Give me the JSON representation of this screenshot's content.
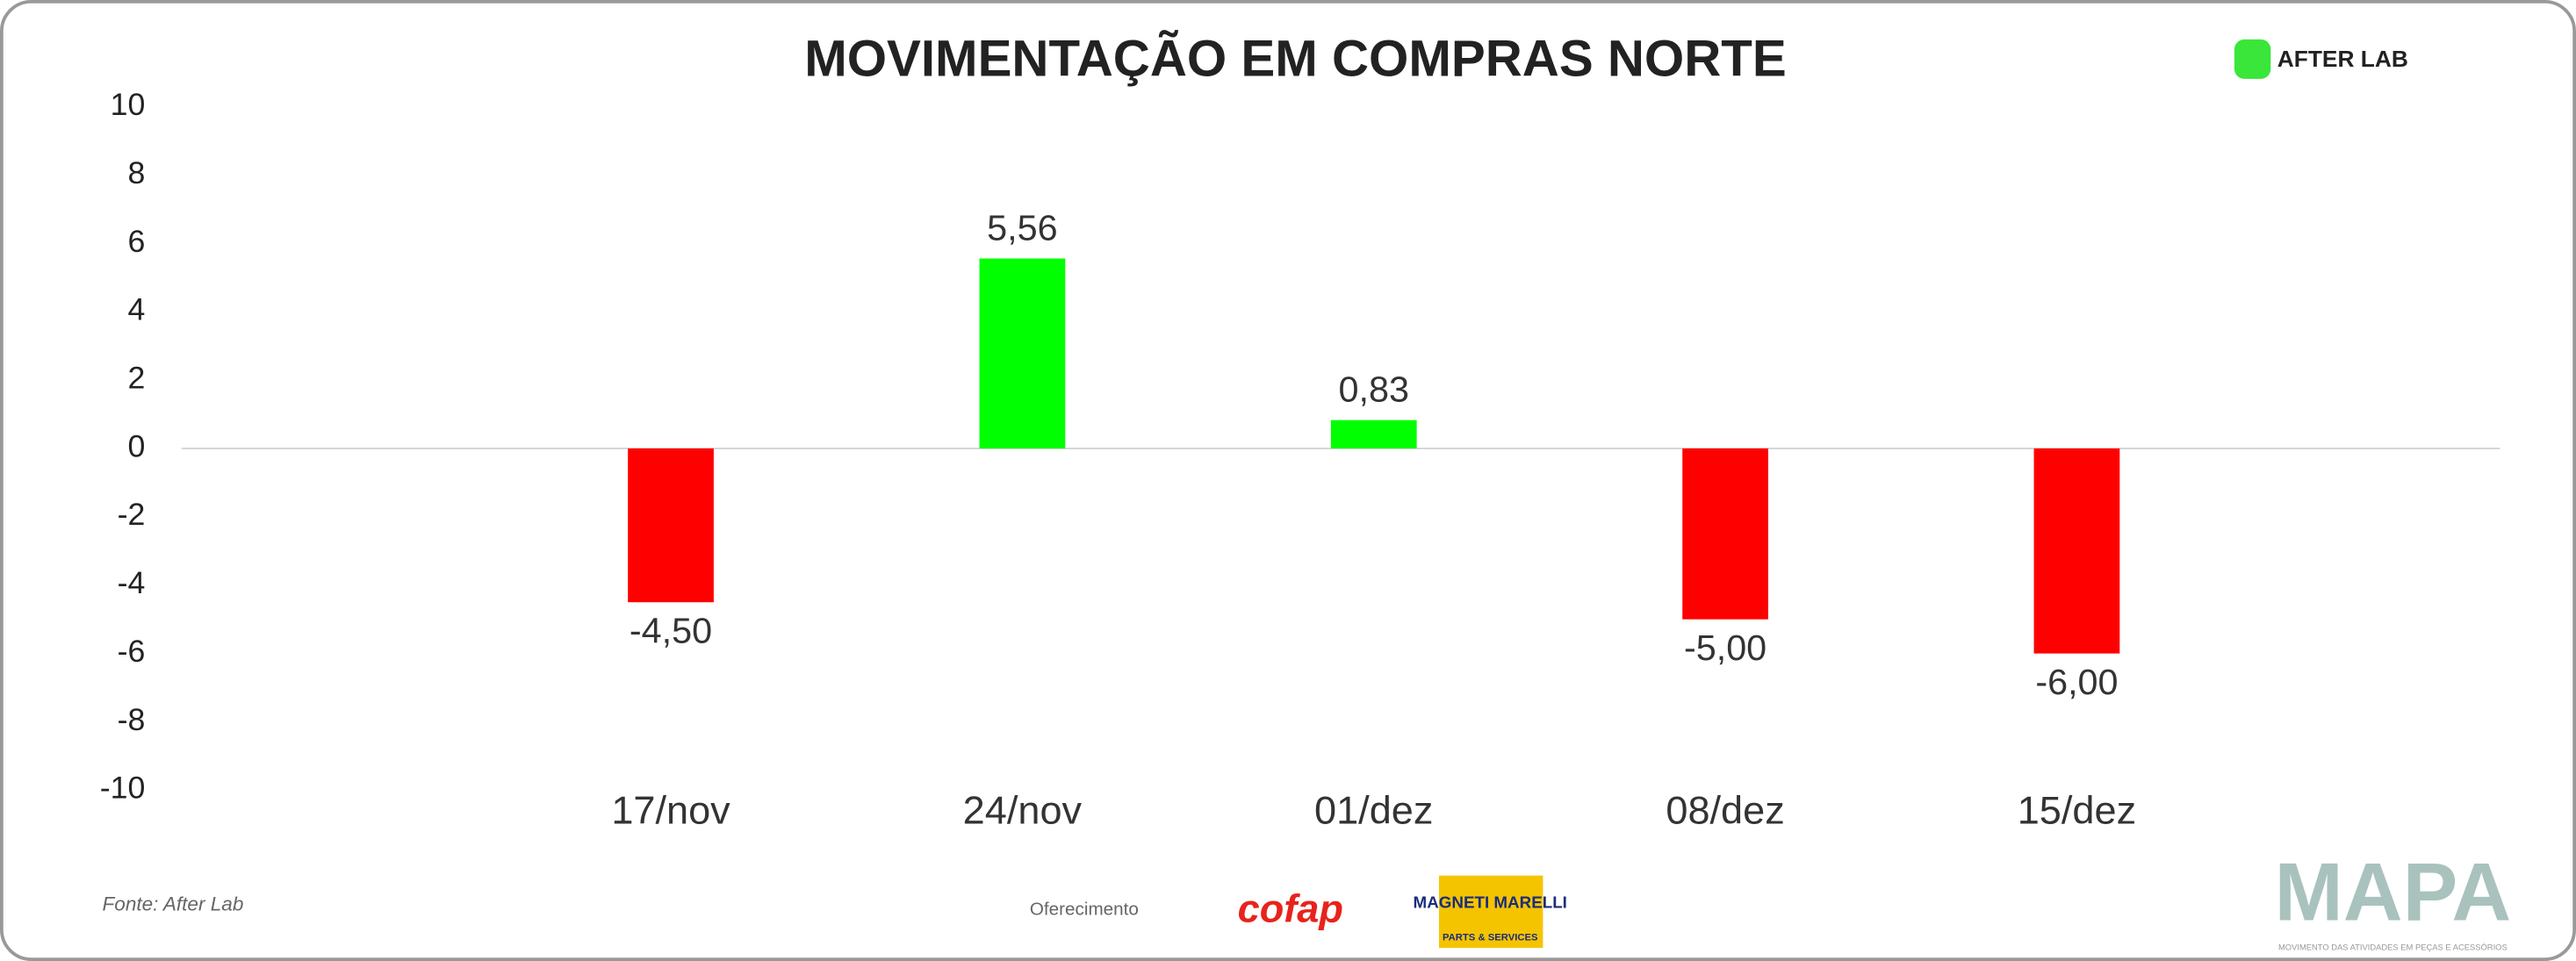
{
  "chart_data": {
    "type": "bar",
    "title": "MOVIMENTAÇÃO EM COMPRAS NORTE",
    "categories": [
      "17/nov",
      "24/nov",
      "01/dez",
      "08/dez",
      "15/dez"
    ],
    "values": [
      -4.5,
      5.56,
      0.83,
      -5,
      -6
    ],
    "value_labels": [
      "-4,50",
      "5,56",
      "0,83",
      "-5,00",
      "-6,00"
    ],
    "positive_color": "#00ff00",
    "negative_color": "#ff0000",
    "ylim": [
      -10,
      10
    ],
    "yticks": [
      -10,
      -8,
      -6,
      -4,
      -2,
      0,
      2,
      4,
      6,
      8,
      10
    ],
    "grid": false
  },
  "header": {
    "logo": "AFTER LAB"
  },
  "footer": {
    "source": "Fonte: After Lab",
    "sponsor_label": "Oferecimento",
    "sponsor_1": "cofap",
    "sponsor_2": "MAGNETI MARELLI",
    "sponsor_2_sub": "PARTS & SERVICES",
    "brand": "MAPA",
    "brand_sub": "MOVIMENTO DAS ATIVIDADES EM PEÇAS E ACESSÓRIOS"
  }
}
